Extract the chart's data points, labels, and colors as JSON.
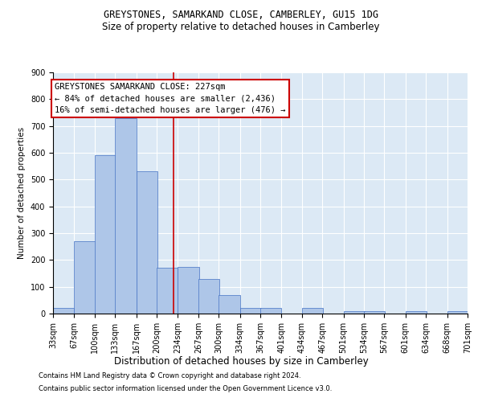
{
  "title1": "GREYSTONES, SAMARKAND CLOSE, CAMBERLEY, GU15 1DG",
  "title2": "Size of property relative to detached houses in Camberley",
  "xlabel": "Distribution of detached houses by size in Camberley",
  "ylabel": "Number of detached properties",
  "footer1": "Contains HM Land Registry data © Crown copyright and database right 2024.",
  "footer2": "Contains public sector information licensed under the Open Government Licence v3.0.",
  "annotation_line1": "GREYSTONES SAMARKAND CLOSE: 227sqm",
  "annotation_line2": "← 84% of detached houses are smaller (2,436)",
  "annotation_line3": "16% of semi-detached houses are larger (476) →",
  "property_sqm": 227,
  "bin_edges": [
    33,
    67,
    100,
    133,
    167,
    200,
    234,
    267,
    300,
    334,
    367,
    401,
    434,
    467,
    501,
    534,
    567,
    601,
    634,
    668,
    701
  ],
  "bin_labels": [
    "33sqm",
    "67sqm",
    "100sqm",
    "133sqm",
    "167sqm",
    "200sqm",
    "234sqm",
    "267sqm",
    "300sqm",
    "334sqm",
    "367sqm",
    "401sqm",
    "434sqm",
    "467sqm",
    "501sqm",
    "534sqm",
    "567sqm",
    "601sqm",
    "634sqm",
    "668sqm",
    "701sqm"
  ],
  "bar_heights": [
    20,
    270,
    590,
    730,
    530,
    170,
    175,
    130,
    70,
    20,
    20,
    0,
    20,
    0,
    10,
    10,
    0,
    10,
    0,
    10
  ],
  "bar_color": "#aec6e8",
  "bar_edge_color": "#4472c4",
  "vline_color": "#cc0000",
  "vline_x": 227,
  "ylim": [
    0,
    900
  ],
  "yticks": [
    0,
    100,
    200,
    300,
    400,
    500,
    600,
    700,
    800,
    900
  ],
  "bg_color": "#dce9f5",
  "annotation_box_color": "#ffffff",
  "annotation_box_edge": "#cc0000",
  "title1_fontsize": 8.5,
  "title2_fontsize": 8.5,
  "xlabel_fontsize": 8.5,
  "ylabel_fontsize": 7.5,
  "tick_fontsize": 7,
  "annotation_fontsize": 7.5,
  "footer_fontsize": 6
}
